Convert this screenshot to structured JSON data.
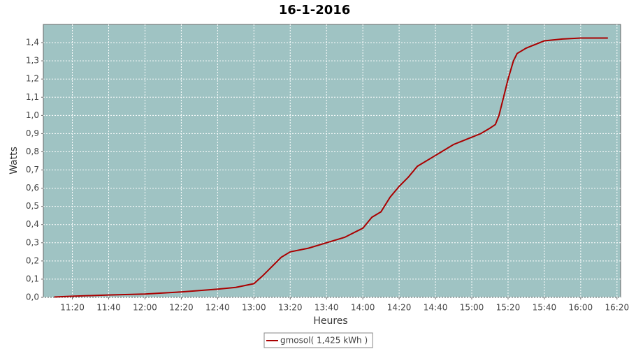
{
  "chart_data": {
    "type": "line",
    "title": "16-1-2016",
    "x_label": "Heures",
    "y_label": "Watts",
    "x": [
      "11:10",
      "11:20",
      "11:40",
      "12:00",
      "12:20",
      "12:40",
      "12:50",
      "13:00",
      "13:05",
      "13:10",
      "13:15",
      "13:20",
      "13:30",
      "13:40",
      "13:50",
      "14:00",
      "14:05",
      "14:10",
      "14:15",
      "14:20",
      "14:25",
      "14:30",
      "14:35",
      "14:40",
      "14:45",
      "14:50",
      "14:55",
      "15:00",
      "15:05",
      "15:10",
      "15:13",
      "15:15",
      "15:18",
      "15:20",
      "15:23",
      "15:25",
      "15:30",
      "15:35",
      "15:40",
      "15:50",
      "16:00",
      "16:10",
      "16:15"
    ],
    "series": [
      {
        "name": "gmosol( 1,425 kWh )",
        "color": "#aa0000",
        "values": [
          0.002,
          0.006,
          0.013,
          0.018,
          0.03,
          0.045,
          0.055,
          0.075,
          0.12,
          0.17,
          0.22,
          0.25,
          0.27,
          0.3,
          0.33,
          0.38,
          0.44,
          0.47,
          0.55,
          0.61,
          0.66,
          0.72,
          0.75,
          0.78,
          0.81,
          0.84,
          0.86,
          0.88,
          0.9,
          0.93,
          0.95,
          1.0,
          1.12,
          1.2,
          1.3,
          1.34,
          1.37,
          1.39,
          1.41,
          1.42,
          1.425,
          1.425,
          1.425
        ]
      }
    ],
    "xlim": [
      "11:04",
      "16:22"
    ],
    "xticks": [
      "11:20",
      "11:40",
      "12:00",
      "12:20",
      "12:40",
      "13:00",
      "13:20",
      "13:40",
      "14:00",
      "14:20",
      "14:40",
      "15:00",
      "15:20",
      "15:40",
      "16:00",
      "16:20"
    ],
    "ylim": [
      0,
      1.5
    ],
    "yticks": [
      {
        "value": 0,
        "label": "0,0"
      },
      {
        "value": 0.1,
        "label": "0,1"
      },
      {
        "value": 0.2,
        "label": "0,2"
      },
      {
        "value": 0.3,
        "label": "0,3"
      },
      {
        "value": 0.4,
        "label": "0,4"
      },
      {
        "value": 0.5,
        "label": "0,5"
      },
      {
        "value": 0.6,
        "label": "0,6"
      },
      {
        "value": 0.7,
        "label": "0,7"
      },
      {
        "value": 0.8,
        "label": "0,8"
      },
      {
        "value": 0.9,
        "label": "0,9"
      },
      {
        "value": 1.0,
        "label": "1,0"
      },
      {
        "value": 1.1,
        "label": "1,1"
      },
      {
        "value": 1.2,
        "label": "1,2"
      },
      {
        "value": 1.3,
        "label": "1,3"
      },
      {
        "value": 1.4,
        "label": "1,4"
      }
    ],
    "grid": true,
    "background": "#9fc3c3",
    "legend": "bottom"
  }
}
